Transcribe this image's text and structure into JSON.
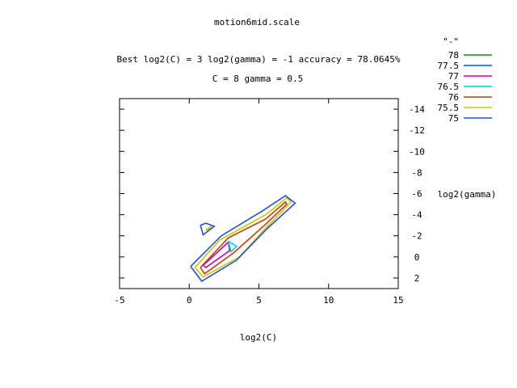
{
  "chart_data": {
    "type": "contour",
    "title": "motion6mid.scale",
    "subtitle_1": "Best log2(C) = 3  log2(gamma) = -1  accuracy = 78.0645%",
    "subtitle_2": "C = 8  gamma = 0.5",
    "xlabel": "log2(C)",
    "ylabel": "log2(gamma)",
    "xlim": [
      -5,
      15
    ],
    "ylim": [
      -15,
      3
    ],
    "y_axis_inverted": true,
    "x_ticks": [
      "-5",
      "0",
      "5",
      "10",
      "15"
    ],
    "y_ticks": [
      "-14",
      "-12",
      "-10",
      "-8",
      "-6",
      "-4",
      "-2",
      "0",
      "2"
    ],
    "legend_title": "\"-\"",
    "legend_position": "top-right",
    "series": [
      {
        "name": "78",
        "color": "#00a000",
        "paths": []
      },
      {
        "name": "77.5",
        "color": "#0060b0",
        "paths": []
      },
      {
        "name": "77",
        "color": "#c000c0",
        "paths": [
          [
            [
              1.0,
              0.8
            ],
            [
              2.8,
              -1.4
            ],
            [
              2.9,
              -0.6
            ],
            [
              1.2,
              1.0
            ],
            [
              1.0,
              0.8
            ]
          ]
        ]
      },
      {
        "name": "76.5",
        "color": "#00d0d0",
        "paths": [
          [
            [
              2.8,
              -1.5
            ],
            [
              3.4,
              -1.0
            ],
            [
              3.0,
              -0.5
            ],
            [
              2.8,
              -1.5
            ]
          ]
        ]
      },
      {
        "name": "76",
        "color": "#c04000",
        "paths": [
          [
            [
              0.8,
              1.0
            ],
            [
              2.8,
              -1.8
            ],
            [
              5.5,
              -3.6
            ],
            [
              6.9,
              -5.2
            ],
            [
              7.0,
              -5.0
            ],
            [
              5.4,
              -3.0
            ],
            [
              3.2,
              -0.4
            ],
            [
              1.1,
              1.6
            ],
            [
              0.8,
              1.0
            ]
          ]
        ]
      },
      {
        "name": "75.5",
        "color": "#c8c800",
        "paths": [
          [
            [
              0.4,
              1.0
            ],
            [
              2.2,
              -1.6
            ],
            [
              5.5,
              -4.0
            ],
            [
              7.0,
              -5.6
            ],
            [
              7.3,
              -5.2
            ],
            [
              5.4,
              -2.6
            ],
            [
              3.6,
              0.0
            ],
            [
              1.0,
              1.9
            ],
            [
              0.4,
              1.0
            ]
          ],
          [
            [
              1.2,
              -2.6
            ],
            [
              1.6,
              -2.9
            ],
            [
              1.3,
              -2.5
            ],
            [
              1.2,
              -2.6
            ]
          ]
        ]
      },
      {
        "name": "75",
        "color": "#2050e0",
        "paths": [
          [
            [
              0.1,
              0.9
            ],
            [
              2.3,
              -2.0
            ],
            [
              5.3,
              -4.4
            ],
            [
              6.9,
              -5.8
            ],
            [
              7.6,
              -5.1
            ],
            [
              5.6,
              -2.7
            ],
            [
              3.4,
              0.3
            ],
            [
              0.9,
              2.3
            ],
            [
              0.1,
              0.9
            ]
          ],
          [
            [
              0.8,
              -3.0
            ],
            [
              1.2,
              -3.2
            ],
            [
              1.8,
              -2.9
            ],
            [
              1.0,
              -2.1
            ],
            [
              0.8,
              -3.0
            ]
          ]
        ]
      }
    ]
  }
}
